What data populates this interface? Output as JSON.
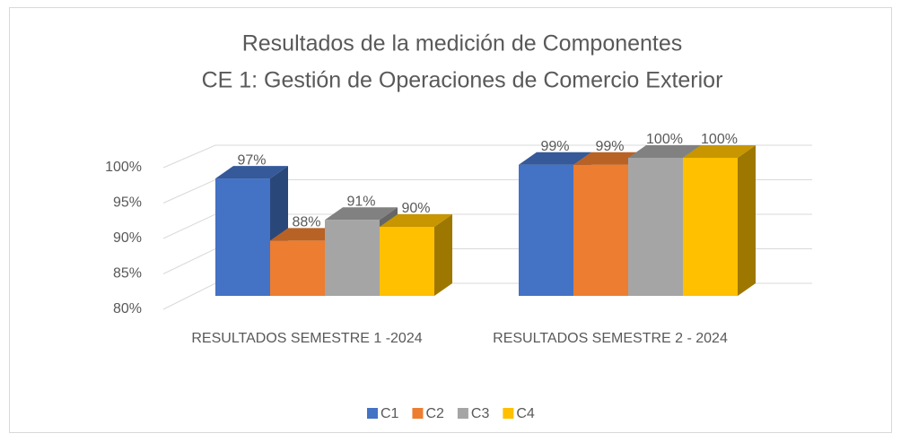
{
  "chart_data": {
    "type": "bar3d",
    "title": "Resultados de la medición de Componentes",
    "subtitle": "CE 1: Gestión de Operaciones de Comercio Exterior",
    "categories": [
      "RESULTADOS SEMESTRE 1 -2024",
      "RESULTADOS SEMESTRE 2 - 2024"
    ],
    "series": [
      {
        "name": "C1",
        "color": "#4472c4",
        "values": [
          97,
          99
        ],
        "value_labels": [
          "97%",
          "99%"
        ]
      },
      {
        "name": "C2",
        "color": "#ed7d31",
        "values": [
          88,
          99
        ],
        "value_labels": [
          "88%",
          "99%"
        ]
      },
      {
        "name": "C3",
        "color": "#a5a5a5",
        "values": [
          91,
          100
        ],
        "value_labels": [
          "91%",
          "100%"
        ]
      },
      {
        "name": "C4",
        "color": "#ffc000",
        "values": [
          90,
          100
        ],
        "value_labels": [
          "90%",
          "100%"
        ]
      }
    ],
    "ylim": [
      80,
      100
    ],
    "yticks": [
      {
        "value": 80,
        "label": "80%"
      },
      {
        "value": 85,
        "label": "85%"
      },
      {
        "value": 90,
        "label": "90%"
      },
      {
        "value": 95,
        "label": "95%"
      },
      {
        "value": 100,
        "label": "100%"
      }
    ],
    "grid": true,
    "legend": "bottom"
  }
}
